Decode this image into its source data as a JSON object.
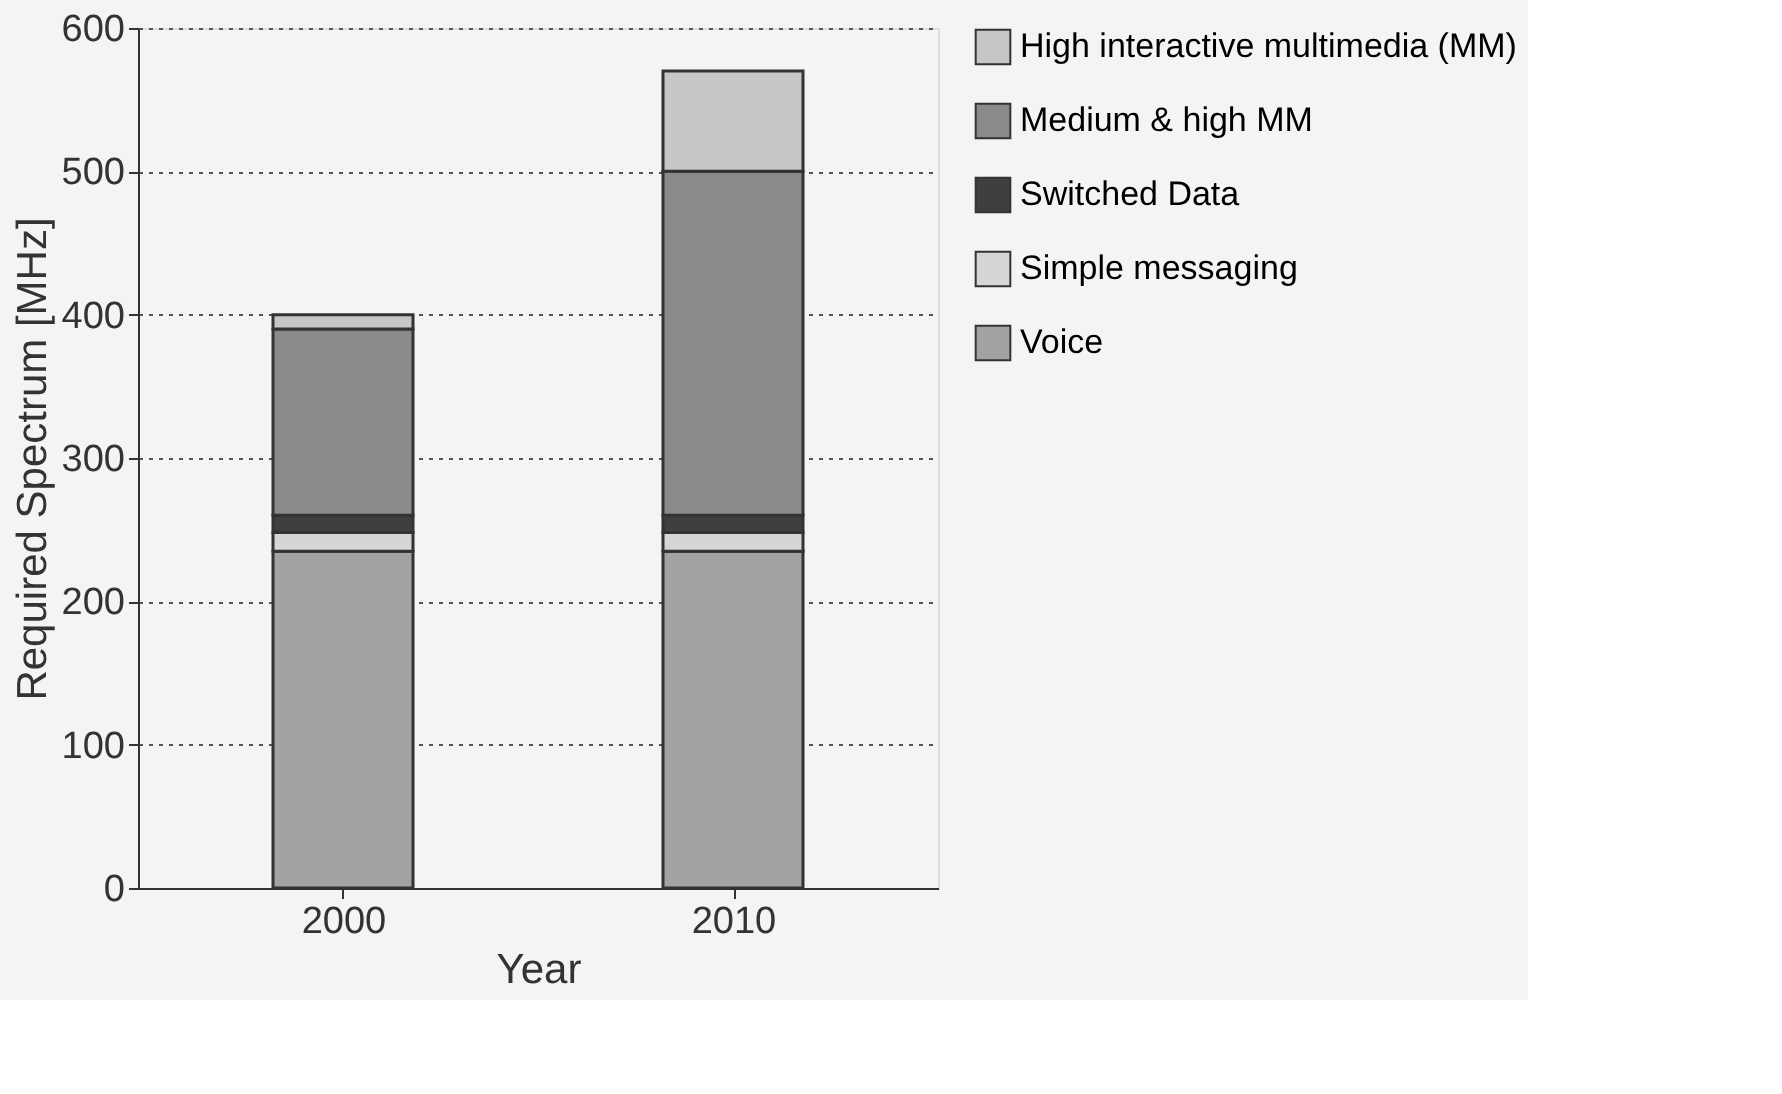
{
  "chart_data": {
    "type": "bar",
    "stacked": true,
    "xlabel": "Year",
    "ylabel": "Required Spectrum [MHz]",
    "categories": [
      "2000",
      "2010"
    ],
    "series": [
      {
        "name": "Voice",
        "color": "#a3a3a3",
        "values": [
          235,
          235
        ]
      },
      {
        "name": "Simple messaging",
        "color": "#d6d6d6",
        "values": [
          13,
          13
        ]
      },
      {
        "name": "Switched Data",
        "color": "#3f3f3f",
        "values": [
          12,
          12
        ]
      },
      {
        "name": "Medium & high MM",
        "color": "#8a8a8a",
        "values": [
          130,
          240
        ]
      },
      {
        "name": "High interactive multimedia (MM)",
        "color": "#c6c6c6",
        "values": [
          10,
          70
        ]
      }
    ],
    "ylim": [
      0,
      600
    ],
    "yticks": [
      0,
      100,
      200,
      300,
      400,
      500,
      600
    ],
    "grid": "y",
    "legend": "right"
  }
}
